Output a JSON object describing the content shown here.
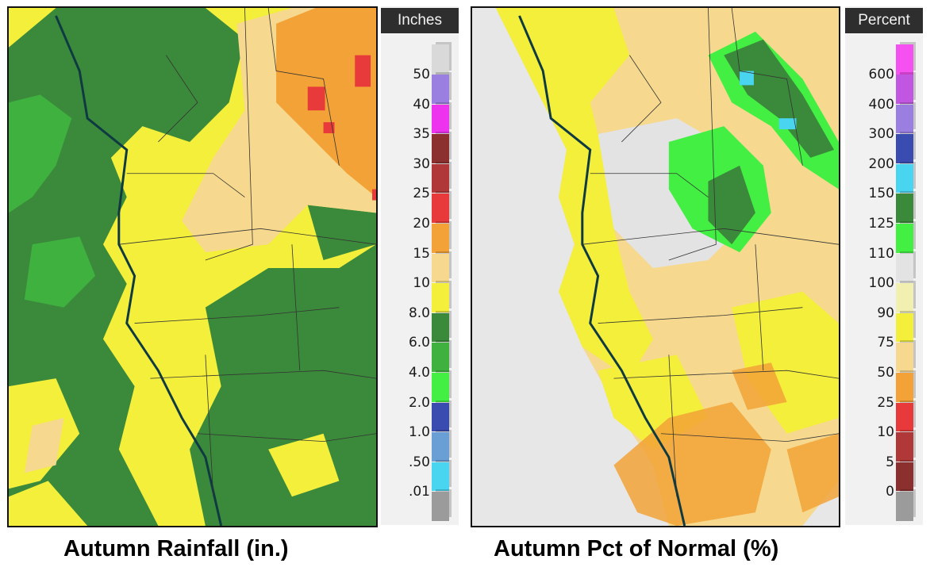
{
  "left_panel": {
    "legend_title": "Inches",
    "legend": [
      {
        "label": "50",
        "color": "#9a7fe0"
      },
      {
        "label": "40",
        "color": "#ee33ee"
      },
      {
        "label": "35",
        "color": "#8b2f2f"
      },
      {
        "label": "30",
        "color": "#b03838"
      },
      {
        "label": "25",
        "color": "#e83a3a"
      },
      {
        "label": "20",
        "color": "#f2a237"
      },
      {
        "label": "15",
        "color": "#f6d98e"
      },
      {
        "label": "10",
        "color": "#f3ef3a"
      },
      {
        "label": "8.0",
        "color": "#3b8a3b"
      },
      {
        "label": "6.0",
        "color": "#3fb13f"
      },
      {
        "label": "4.0",
        "color": "#42ef42"
      },
      {
        "label": "2.0",
        "color": "#3b4cb0"
      },
      {
        "label": "1.0",
        "color": "#6a9fd6"
      },
      {
        "label": ".50",
        "color": "#49d4f0"
      },
      {
        "label": ".01",
        "color": "#9b9b9b"
      }
    ],
    "caption": "Autumn Rainfall (in.)"
  },
  "right_panel": {
    "legend_title": "Percent",
    "legend": [
      {
        "label": "600",
        "color": "#c157e0"
      },
      {
        "label": "400",
        "color": "#9a7fe0"
      },
      {
        "label": "300",
        "color": "#3b4cb0"
      },
      {
        "label": "200",
        "color": "#49d4f0"
      },
      {
        "label": "150",
        "color": "#3b8a3b"
      },
      {
        "label": "125",
        "color": "#42ef42"
      },
      {
        "label": "110",
        "color": "#e3e3e3"
      },
      {
        "label": "100",
        "color": "#f1f0b0"
      },
      {
        "label": "90",
        "color": "#f3ef3a"
      },
      {
        "label": "75",
        "color": "#f6d98e"
      },
      {
        "label": "50",
        "color": "#f2a237"
      },
      {
        "label": "25",
        "color": "#e83a3a"
      },
      {
        "label": "10",
        "color": "#b03838"
      },
      {
        "label": "5",
        "color": "#8b2f2f"
      },
      {
        "label": "0",
        "color": "#9b9b9b"
      }
    ],
    "caption": "Autumn Pct of Normal (%)"
  },
  "legend_top_colors": {
    "left": "#d9d9d9",
    "right": "#f550f0"
  }
}
